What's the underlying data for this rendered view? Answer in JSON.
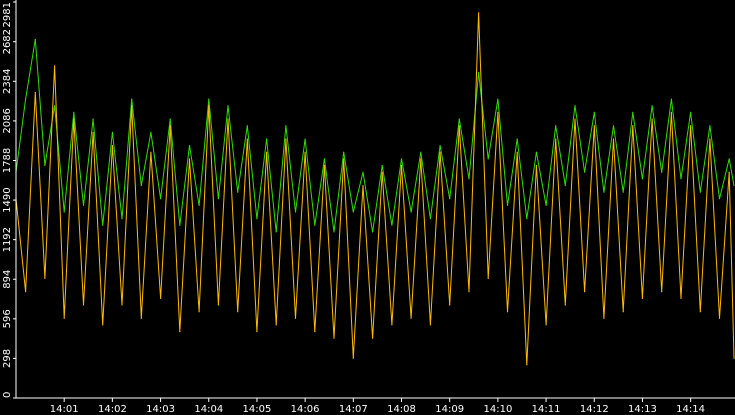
{
  "chart_data": {
    "type": "line",
    "title": "",
    "xlabel": "",
    "ylabel": "",
    "ylim": [
      0,
      2981
    ],
    "y_ticks": [
      0,
      298,
      596,
      894,
      1192,
      1490,
      1788,
      2086,
      2384,
      2682,
      2981
    ],
    "x_ticks": [
      "14:01",
      "14:02",
      "14:03",
      "14:04",
      "14:05",
      "14:06",
      "14:07",
      "14:08",
      "14:09",
      "14:10",
      "14:11",
      "14:12",
      "14:13",
      "14:14"
    ],
    "x_range_minutes": [
      0.0,
      14.9
    ],
    "grid": false,
    "legend": "none",
    "colors": {
      "background": "#000000",
      "axis": "#ffffff",
      "text": "#ffffff",
      "series_upper": "#33dd00",
      "series_lower": "#ffbb00"
    },
    "series": [
      {
        "color_key": "series_upper",
        "points": [
          [
            0.0,
            1700
          ],
          [
            0.2,
            2250
          ],
          [
            0.4,
            2700
          ],
          [
            0.6,
            1750
          ],
          [
            0.8,
            2200
          ],
          [
            1.0,
            1400
          ],
          [
            1.2,
            2150
          ],
          [
            1.4,
            1450
          ],
          [
            1.6,
            2100
          ],
          [
            1.8,
            1300
          ],
          [
            2.0,
            2000
          ],
          [
            2.2,
            1350
          ],
          [
            2.4,
            2250
          ],
          [
            2.6,
            1600
          ],
          [
            2.8,
            2000
          ],
          [
            3.0,
            1500
          ],
          [
            3.2,
            2100
          ],
          [
            3.4,
            1300
          ],
          [
            3.6,
            1900
          ],
          [
            3.8,
            1450
          ],
          [
            4.0,
            2250
          ],
          [
            4.2,
            1500
          ],
          [
            4.4,
            2200
          ],
          [
            4.6,
            1550
          ],
          [
            4.8,
            2050
          ],
          [
            5.0,
            1350
          ],
          [
            5.2,
            1950
          ],
          [
            5.4,
            1250
          ],
          [
            5.6,
            2050
          ],
          [
            5.8,
            1400
          ],
          [
            6.0,
            1950
          ],
          [
            6.2,
            1300
          ],
          [
            6.4,
            1800
          ],
          [
            6.6,
            1250
          ],
          [
            6.8,
            1850
          ],
          [
            7.0,
            1400
          ],
          [
            7.2,
            1700
          ],
          [
            7.4,
            1250
          ],
          [
            7.6,
            1750
          ],
          [
            7.8,
            1300
          ],
          [
            8.0,
            1800
          ],
          [
            8.2,
            1400
          ],
          [
            8.4,
            1850
          ],
          [
            8.6,
            1350
          ],
          [
            8.8,
            1900
          ],
          [
            9.0,
            1500
          ],
          [
            9.2,
            2100
          ],
          [
            9.4,
            1650
          ],
          [
            9.6,
            2450
          ],
          [
            9.8,
            1800
          ],
          [
            10.0,
            2250
          ],
          [
            10.2,
            1450
          ],
          [
            10.4,
            1950
          ],
          [
            10.6,
            1350
          ],
          [
            10.8,
            1850
          ],
          [
            11.0,
            1450
          ],
          [
            11.2,
            2050
          ],
          [
            11.4,
            1600
          ],
          [
            11.6,
            2200
          ],
          [
            11.8,
            1700
          ],
          [
            12.0,
            2150
          ],
          [
            12.2,
            1550
          ],
          [
            12.4,
            2050
          ],
          [
            12.6,
            1550
          ],
          [
            12.8,
            2150
          ],
          [
            13.0,
            1650
          ],
          [
            13.2,
            2200
          ],
          [
            13.4,
            1700
          ],
          [
            13.6,
            2250
          ],
          [
            13.8,
            1650
          ],
          [
            14.0,
            2150
          ],
          [
            14.2,
            1550
          ],
          [
            14.4,
            2050
          ],
          [
            14.6,
            1500
          ],
          [
            14.8,
            1800
          ],
          [
            14.9,
            1600
          ]
        ]
      },
      {
        "color_key": "series_lower",
        "points": [
          [
            0.0,
            1500
          ],
          [
            0.2,
            800
          ],
          [
            0.4,
            2300
          ],
          [
            0.6,
            900
          ],
          [
            0.8,
            2500
          ],
          [
            1.0,
            600
          ],
          [
            1.2,
            2100
          ],
          [
            1.4,
            700
          ],
          [
            1.6,
            2000
          ],
          [
            1.8,
            550
          ],
          [
            2.0,
            1900
          ],
          [
            2.2,
            700
          ],
          [
            2.4,
            2200
          ],
          [
            2.6,
            600
          ],
          [
            2.8,
            1850
          ],
          [
            3.0,
            750
          ],
          [
            3.2,
            2050
          ],
          [
            3.4,
            500
          ],
          [
            3.6,
            1800
          ],
          [
            3.8,
            650
          ],
          [
            4.0,
            2200
          ],
          [
            4.2,
            700
          ],
          [
            4.4,
            2100
          ],
          [
            4.6,
            650
          ],
          [
            4.8,
            1950
          ],
          [
            5.0,
            500
          ],
          [
            5.2,
            1850
          ],
          [
            5.4,
            550
          ],
          [
            5.6,
            1950
          ],
          [
            5.8,
            600
          ],
          [
            6.0,
            1850
          ],
          [
            6.2,
            500
          ],
          [
            6.4,
            1750
          ],
          [
            6.6,
            450
          ],
          [
            6.8,
            1800
          ],
          [
            7.0,
            300
          ],
          [
            7.2,
            1600
          ],
          [
            7.4,
            450
          ],
          [
            7.6,
            1700
          ],
          [
            7.8,
            550
          ],
          [
            8.0,
            1750
          ],
          [
            8.2,
            600
          ],
          [
            8.4,
            1800
          ],
          [
            8.6,
            550
          ],
          [
            8.8,
            1850
          ],
          [
            9.0,
            700
          ],
          [
            9.2,
            2050
          ],
          [
            9.4,
            800
          ],
          [
            9.6,
            2900
          ],
          [
            9.8,
            900
          ],
          [
            10.0,
            2150
          ],
          [
            10.2,
            650
          ],
          [
            10.4,
            1850
          ],
          [
            10.6,
            250
          ],
          [
            10.8,
            1750
          ],
          [
            11.0,
            550
          ],
          [
            11.2,
            1950
          ],
          [
            11.4,
            700
          ],
          [
            11.6,
            2100
          ],
          [
            11.8,
            800
          ],
          [
            12.0,
            2050
          ],
          [
            12.2,
            600
          ],
          [
            12.4,
            1950
          ],
          [
            12.6,
            650
          ],
          [
            12.8,
            2050
          ],
          [
            13.0,
            750
          ],
          [
            13.2,
            2100
          ],
          [
            13.4,
            800
          ],
          [
            13.6,
            2150
          ],
          [
            13.8,
            750
          ],
          [
            14.0,
            2050
          ],
          [
            14.2,
            650
          ],
          [
            14.4,
            1950
          ],
          [
            14.6,
            600
          ],
          [
            14.8,
            1700
          ],
          [
            14.9,
            300
          ]
        ]
      }
    ]
  }
}
